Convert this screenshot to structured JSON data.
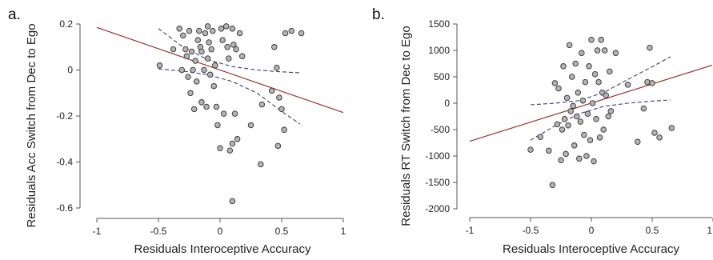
{
  "chart_data": [
    {
      "type": "scatter",
      "panel_label": "a.",
      "xlabel": "Residuals Interoceptive Accuracy",
      "ylabel": "Residuals Acc Switch from Dec to Ego",
      "xlim": [
        -1,
        1
      ],
      "ylim": [
        -0.6,
        0.2
      ],
      "xticks": [
        -1,
        -0.5,
        0,
        0.5,
        1
      ],
      "yticks": [
        0.2,
        0,
        -0.2,
        -0.4,
        -0.6
      ],
      "xtick_labels": [
        "-1",
        "-0.5",
        "0",
        "0.5",
        "1"
      ],
      "ytick_labels": [
        "0.2",
        "0",
        "-0.2",
        "-0.4",
        "-0.6"
      ],
      "grid": false,
      "point_color": "#b3b3b3",
      "fit_color": "#a0312d",
      "ci_color": "#3a3a8c",
      "fit_line": {
        "x": [
          -1,
          1
        ],
        "y": [
          0.185,
          -0.185
        ]
      },
      "ci_upper": {
        "x": [
          -0.5,
          -0.3,
          -0.1,
          0.1,
          0.3,
          0.5,
          0.65
        ],
        "y": [
          0.18,
          0.1,
          0.045,
          0.015,
          0.0,
          -0.008,
          -0.012
        ]
      },
      "ci_lower": {
        "x": [
          -0.5,
          -0.3,
          -0.1,
          0.1,
          0.3,
          0.5,
          0.65
        ],
        "y": [
          0.005,
          -0.005,
          -0.02,
          -0.05,
          -0.1,
          -0.18,
          -0.235
        ]
      },
      "points": [
        {
          "x": -0.49,
          "y": 0.02
        },
        {
          "x": -0.38,
          "y": 0.09
        },
        {
          "x": -0.33,
          "y": 0.18
        },
        {
          "x": -0.31,
          "y": 0.0
        },
        {
          "x": -0.3,
          "y": 0.15
        },
        {
          "x": -0.28,
          "y": 0.09
        },
        {
          "x": -0.27,
          "y": 0.06
        },
        {
          "x": -0.26,
          "y": -0.03
        },
        {
          "x": -0.25,
          "y": 0.17
        },
        {
          "x": -0.24,
          "y": -0.1
        },
        {
          "x": -0.23,
          "y": 0.08
        },
        {
          "x": -0.22,
          "y": 0.0
        },
        {
          "x": -0.21,
          "y": -0.17
        },
        {
          "x": -0.2,
          "y": 0.04
        },
        {
          "x": -0.19,
          "y": -0.05
        },
        {
          "x": -0.18,
          "y": 0.13
        },
        {
          "x": -0.17,
          "y": 0.17
        },
        {
          "x": -0.16,
          "y": 0.1
        },
        {
          "x": -0.15,
          "y": -0.14
        },
        {
          "x": -0.15,
          "y": 0.08
        },
        {
          "x": -0.13,
          "y": 0.0
        },
        {
          "x": -0.12,
          "y": 0.16
        },
        {
          "x": -0.11,
          "y": -0.16
        },
        {
          "x": -0.1,
          "y": 0.19
        },
        {
          "x": -0.1,
          "y": 0.05
        },
        {
          "x": -0.09,
          "y": 0.12
        },
        {
          "x": -0.08,
          "y": -0.02
        },
        {
          "x": -0.07,
          "y": 0.09
        },
        {
          "x": -0.06,
          "y": 0.17
        },
        {
          "x": -0.05,
          "y": -0.07
        },
        {
          "x": -0.04,
          "y": 0.02
        },
        {
          "x": -0.03,
          "y": -0.16
        },
        {
          "x": -0.02,
          "y": -0.24
        },
        {
          "x": 0.0,
          "y": -0.34
        },
        {
          "x": 0.01,
          "y": 0.18
        },
        {
          "x": 0.02,
          "y": 0.13
        },
        {
          "x": 0.03,
          "y": -0.19
        },
        {
          "x": 0.05,
          "y": 0.19
        },
        {
          "x": 0.06,
          "y": 0.1
        },
        {
          "x": 0.07,
          "y": 0.05
        },
        {
          "x": 0.08,
          "y": -0.35
        },
        {
          "x": 0.1,
          "y": 0.18
        },
        {
          "x": 0.1,
          "y": -0.32
        },
        {
          "x": 0.11,
          "y": 0.11
        },
        {
          "x": 0.12,
          "y": -0.19
        },
        {
          "x": 0.13,
          "y": 0.09
        },
        {
          "x": 0.14,
          "y": -0.3
        },
        {
          "x": 0.16,
          "y": 0.16
        },
        {
          "x": 0.1,
          "y": -0.57
        },
        {
          "x": 0.18,
          "y": 0.06
        },
        {
          "x": 0.25,
          "y": -0.24
        },
        {
          "x": 0.33,
          "y": -0.41
        },
        {
          "x": 0.34,
          "y": -0.15
        },
        {
          "x": 0.42,
          "y": -0.09
        },
        {
          "x": 0.44,
          "y": 0.1
        },
        {
          "x": 0.46,
          "y": 0.01
        },
        {
          "x": 0.47,
          "y": -0.33
        },
        {
          "x": 0.48,
          "y": -0.12
        },
        {
          "x": 0.5,
          "y": -0.17
        },
        {
          "x": 0.52,
          "y": -0.26
        },
        {
          "x": 0.53,
          "y": 0.16
        },
        {
          "x": 0.58,
          "y": 0.17
        },
        {
          "x": 0.66,
          "y": 0.16
        }
      ]
    },
    {
      "type": "scatter",
      "panel_label": "b.",
      "xlabel": "Residuals Interoceptive Accuracy",
      "ylabel": "Residuals RT Switch from Dec to Ego",
      "xlim": [
        -1,
        1
      ],
      "ylim": [
        -2000,
        1500
      ],
      "xticks": [
        -1,
        -0.5,
        0,
        0.5,
        1
      ],
      "yticks": [
        1500,
        1000,
        500,
        0,
        -500,
        -1000,
        -1500,
        -2000
      ],
      "xtick_labels": [
        "-1",
        "-0.5",
        "0",
        "0.5",
        "1"
      ],
      "ytick_labels": [
        "1500",
        "1000",
        "500",
        "0",
        "-500",
        "-1000",
        "-1500",
        "-2000"
      ],
      "grid": false,
      "point_color": "#b3b3b3",
      "fit_color": "#a0312d",
      "ci_color": "#3a3a8c",
      "fit_line": {
        "x": [
          -1,
          1
        ],
        "y": [
          -720,
          720
        ]
      },
      "ci_upper": {
        "x": [
          -0.5,
          -0.3,
          -0.1,
          0.1,
          0.3,
          0.5,
          0.65
        ],
        "y": [
          -30,
          0,
          50,
          200,
          450,
          690,
          880
        ]
      },
      "ci_lower": {
        "x": [
          -0.5,
          -0.3,
          -0.1,
          0.1,
          0.3,
          0.5,
          0.65
        ],
        "y": [
          -700,
          -430,
          -200,
          -60,
          0,
          40,
          60
        ]
      },
      "points": [
        {
          "x": -0.5,
          "y": -880
        },
        {
          "x": -0.42,
          "y": -640
        },
        {
          "x": -0.35,
          "y": -900
        },
        {
          "x": -0.32,
          "y": -1550
        },
        {
          "x": -0.3,
          "y": 380
        },
        {
          "x": -0.28,
          "y": -400
        },
        {
          "x": -0.27,
          "y": 280
        },
        {
          "x": -0.25,
          "y": -1080
        },
        {
          "x": -0.24,
          "y": -500
        },
        {
          "x": -0.23,
          "y": 700
        },
        {
          "x": -0.22,
          "y": -300
        },
        {
          "x": -0.21,
          "y": -960
        },
        {
          "x": -0.2,
          "y": 100
        },
        {
          "x": -0.19,
          "y": -420
        },
        {
          "x": -0.18,
          "y": 1100
        },
        {
          "x": -0.17,
          "y": -150
        },
        {
          "x": -0.16,
          "y": 500
        },
        {
          "x": -0.15,
          "y": -50
        },
        {
          "x": -0.14,
          "y": -800
        },
        {
          "x": -0.13,
          "y": 750
        },
        {
          "x": -0.12,
          "y": -250
        },
        {
          "x": -0.11,
          "y": 200
        },
        {
          "x": -0.1,
          "y": -1050
        },
        {
          "x": -0.09,
          "y": -350
        },
        {
          "x": -0.08,
          "y": 950
        },
        {
          "x": -0.07,
          "y": 50
        },
        {
          "x": -0.06,
          "y": -600
        },
        {
          "x": -0.05,
          "y": 400
        },
        {
          "x": -0.04,
          "y": -1000
        },
        {
          "x": -0.03,
          "y": -200
        },
        {
          "x": -0.02,
          "y": 700
        },
        {
          "x": -0.01,
          "y": -700
        },
        {
          "x": 0.0,
          "y": 1200
        },
        {
          "x": 0.01,
          "y": 0
        },
        {
          "x": 0.02,
          "y": -1100
        },
        {
          "x": 0.03,
          "y": 550
        },
        {
          "x": 0.04,
          "y": -300
        },
        {
          "x": 0.05,
          "y": 1000
        },
        {
          "x": 0.06,
          "y": 400
        },
        {
          "x": 0.07,
          "y": -650
        },
        {
          "x": 0.08,
          "y": 1200
        },
        {
          "x": 0.09,
          "y": 200
        },
        {
          "x": 0.1,
          "y": -500
        },
        {
          "x": 0.11,
          "y": 1000
        },
        {
          "x": 0.12,
          "y": 150
        },
        {
          "x": 0.14,
          "y": -250
        },
        {
          "x": 0.15,
          "y": 600
        },
        {
          "x": 0.16,
          "y": -150
        },
        {
          "x": 0.2,
          "y": 950
        },
        {
          "x": 0.3,
          "y": 350
        },
        {
          "x": 0.38,
          "y": -730
        },
        {
          "x": 0.43,
          "y": -100
        },
        {
          "x": 0.46,
          "y": 400
        },
        {
          "x": 0.48,
          "y": 1050
        },
        {
          "x": 0.5,
          "y": 380
        },
        {
          "x": 0.52,
          "y": -560
        },
        {
          "x": 0.56,
          "y": -650
        },
        {
          "x": 0.66,
          "y": -470
        }
      ]
    }
  ]
}
